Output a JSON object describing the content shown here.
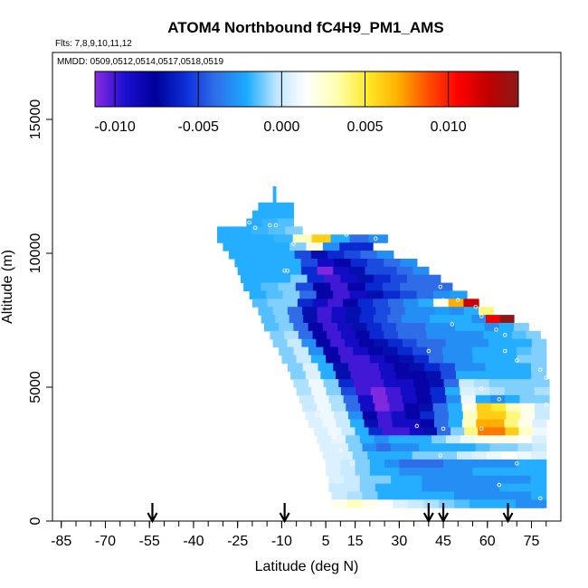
{
  "chart_data": {
    "type": "heatmap",
    "title": "ATOM4 Northbound fC4H9_PM1_AMS",
    "flights_text": "Flts: 7,8,9,10,11,12",
    "dates_text": "MMDD: 0509,0512,0514,0517,0518,0519",
    "xlabel": "Latitude (deg N)",
    "ylabel": "Altitude (m)",
    "xlim": [
      -88,
      85
    ],
    "ylim": [
      0,
      17500
    ],
    "x_ticks": [
      -85,
      -70,
      -55,
      -40,
      -25,
      -10,
      5,
      15,
      30,
      45,
      60,
      75
    ],
    "x_tick_labels": [
      "-85",
      "-70",
      "-55",
      "-40",
      "-25",
      "-10",
      "5",
      "15",
      "30",
      "45",
      "60",
      "75"
    ],
    "y_ticks": [
      0,
      5000,
      10000,
      15000
    ],
    "y_tick_labels": [
      "0",
      "5000",
      "10000",
      "15000"
    ],
    "colorbar": {
      "min": -0.0112,
      "max": 0.0142,
      "ticks": [
        -0.01,
        -0.005,
        0.0,
        0.005,
        0.01
      ],
      "tick_labels": [
        "-0.010",
        "-0.005",
        "0.000",
        "0.005",
        "0.010"
      ],
      "colors": [
        "#8a2be2",
        "#1a0fd0",
        "#00009a",
        "#0d2fd8",
        "#2f6fe8",
        "#19aaff",
        "#bfe6ff",
        "#ffffff",
        "#ffffb0",
        "#ffea2a",
        "#ffb000",
        "#ff5000",
        "#ff0000",
        "#c00000",
        "#8b1a1a"
      ]
    },
    "arrow_latitudes": [
      -54,
      -9,
      40,
      45,
      67
    ],
    "rows": [
      {
        "alt": 12350,
        "x0": -13,
        "x1": -12,
        "v": [
          -0.002
        ]
      },
      {
        "alt": 12050,
        "x0": -13,
        "x1": -12,
        "v": [
          -0.002
        ]
      },
      {
        "alt": 11750,
        "x0": -18,
        "x1": -6,
        "v": [
          -0.002,
          -0.002
        ]
      },
      {
        "alt": 11450,
        "x0": -20,
        "x1": -6,
        "v": [
          -0.002,
          -0.002,
          -0.002
        ]
      },
      {
        "alt": 11150,
        "x0": -22,
        "x1": -6,
        "v": [
          -0.002,
          -0.0018,
          -0.0015
        ]
      },
      {
        "alt": 10850,
        "x0": -32,
        "x1": -3,
        "v": [
          -0.002,
          -0.002,
          -0.0018,
          -0.0015,
          -0.001
        ]
      },
      {
        "alt": 10550,
        "x0": -32,
        "x1": 26,
        "v": [
          -0.002,
          -0.002,
          -0.002,
          -0.0018,
          0.003,
          0.006,
          -0.002,
          -0.004,
          -0.003
        ]
      },
      {
        "alt": 10250,
        "x0": -30,
        "x1": 21,
        "v": [
          -0.002,
          -0.002,
          -0.002,
          -0.002,
          -0.001,
          0.002,
          -0.003,
          -0.006,
          -0.006
        ]
      },
      {
        "alt": 9950,
        "x0": -28,
        "x1": 28,
        "v": [
          -0.002,
          -0.002,
          -0.002,
          -0.002,
          -0.005,
          -0.007,
          -0.006,
          -0.005,
          -0.004,
          -0.003
        ]
      },
      {
        "alt": 9650,
        "x0": -26,
        "x1": 36,
        "v": [
          -0.002,
          -0.002,
          -0.002,
          -0.002,
          -0.005,
          -0.009,
          -0.008,
          -0.006,
          -0.005,
          -0.004,
          -0.003
        ]
      },
      {
        "alt": 9350,
        "x0": -25,
        "x1": 40,
        "v": [
          -0.002,
          -0.002,
          -0.002,
          -0.002,
          -0.006,
          -0.011,
          -0.009,
          -0.007,
          -0.005,
          -0.005,
          -0.004,
          -0.003
        ]
      },
      {
        "alt": 9050,
        "x0": -24,
        "x1": 44,
        "v": [
          -0.002,
          -0.002,
          -0.002,
          -0.001,
          -0.006,
          -0.01,
          -0.009,
          -0.007,
          -0.006,
          -0.005,
          -0.004,
          -0.004
        ]
      },
      {
        "alt": 8750,
        "x0": -23,
        "x1": 48,
        "v": [
          -0.002,
          -0.0015,
          -0.001,
          -0.005,
          -0.008,
          -0.01,
          -0.008,
          -0.006,
          -0.005,
          -0.004,
          -0.004,
          -0.004
        ]
      },
      {
        "alt": 8450,
        "x0": -21,
        "x1": 53,
        "v": [
          -0.002,
          -0.0015,
          -0.001,
          -0.004,
          -0.008,
          -0.01,
          -0.009,
          -0.007,
          -0.006,
          -0.005,
          -0.004,
          -0.003,
          -0.0025
        ]
      },
      {
        "alt": 8150,
        "x0": -20,
        "x1": 57,
        "v": [
          -0.0015,
          -0.001,
          -0.001,
          -0.006,
          -0.009,
          -0.01,
          -0.008,
          -0.006,
          -0.005,
          -0.004,
          -0.003,
          -0.002,
          0.002,
          0.007,
          0.012
        ]
      },
      {
        "alt": 7850,
        "x0": -18,
        "x1": 62,
        "v": [
          -0.0015,
          -0.001,
          -0.004,
          -0.007,
          -0.01,
          -0.009,
          -0.007,
          -0.006,
          -0.005,
          -0.004,
          -0.003,
          -0.003,
          -0.0025,
          -0.003,
          -0.002,
          0.004
        ]
      },
      {
        "alt": 7550,
        "x0": -17,
        "x1": 69,
        "v": [
          -0.0015,
          -0.001,
          -0.004,
          -0.007,
          -0.01,
          -0.009,
          -0.007,
          -0.006,
          -0.005,
          -0.004,
          -0.003,
          -0.003,
          -0.002,
          -0.002,
          -0.002,
          -0.003,
          0.011,
          0.014
        ]
      },
      {
        "alt": 7250,
        "x0": -16,
        "x1": 74,
        "v": [
          -0.0015,
          -0.001,
          -0.004,
          -0.008,
          -0.01,
          -0.009,
          -0.007,
          -0.006,
          -0.005,
          -0.004,
          -0.004,
          -0.003,
          -0.003,
          -0.002,
          -0.002,
          -0.003,
          -0.002,
          -0.001
        ]
      },
      {
        "alt": 6950,
        "x0": -14,
        "x1": 78,
        "v": [
          -0.001,
          -0.0005,
          -0.004,
          -0.008,
          -0.01,
          -0.009,
          -0.008,
          -0.006,
          -0.005,
          -0.004,
          -0.004,
          -0.003,
          -0.003,
          -0.003,
          -0.003,
          -0.002,
          -0.002,
          -0.0015,
          -0.001
        ]
      },
      {
        "alt": 6650,
        "x0": -13,
        "x1": 80,
        "v": [
          -0.001,
          0.0,
          -0.003,
          -0.008,
          -0.01,
          -0.009,
          -0.008,
          -0.007,
          -0.006,
          -0.005,
          -0.004,
          -0.004,
          -0.003,
          -0.003,
          -0.003,
          -0.002,
          -0.002,
          -0.002,
          -0.001
        ]
      },
      {
        "alt": 6350,
        "x0": -11,
        "x1": 80,
        "v": [
          -0.001,
          0.0,
          -0.003,
          -0.008,
          -0.01,
          -0.009,
          -0.008,
          -0.007,
          -0.006,
          -0.005,
          -0.004,
          -0.003,
          -0.003,
          -0.002,
          -0.002,
          -0.002,
          -0.0015,
          -0.001
        ]
      },
      {
        "alt": 6050,
        "x0": -10,
        "x1": 80,
        "v": [
          -0.001,
          0.0,
          -0.002,
          -0.008,
          -0.01,
          -0.01,
          -0.009,
          -0.008,
          -0.007,
          -0.006,
          -0.004,
          -0.003,
          -0.003,
          -0.002,
          -0.002,
          -0.002,
          -0.001,
          -0.001
        ]
      },
      {
        "alt": 5750,
        "x0": -8,
        "x1": 80,
        "v": [
          -0.001,
          0.0005,
          -0.002,
          -0.007,
          -0.01,
          -0.01,
          -0.009,
          -0.008,
          -0.007,
          -0.006,
          -0.005,
          -0.003,
          -0.003,
          -0.002,
          -0.002,
          -0.002,
          -0.001
        ]
      },
      {
        "alt": 5450,
        "x0": -7,
        "x1": 80,
        "v": [
          -0.001,
          0.0005,
          -0.002,
          -0.007,
          -0.01,
          -0.01,
          -0.009,
          -0.008,
          -0.008,
          -0.007,
          -0.005,
          -0.002,
          -0.002,
          -0.002,
          -0.002,
          -0.002,
          -0.001
        ]
      },
      {
        "alt": 5150,
        "x0": -6,
        "x1": 81,
        "v": [
          -0.0005,
          0.001,
          -0.001,
          -0.006,
          -0.01,
          -0.01,
          -0.009,
          -0.009,
          -0.008,
          -0.007,
          -0.004,
          0.0,
          -0.0005,
          -0.001,
          -0.001,
          -0.001,
          -0.001
        ]
      },
      {
        "alt": 4850,
        "x0": -5,
        "x1": 81,
        "v": [
          -0.0005,
          0.001,
          -0.001,
          -0.005,
          -0.01,
          -0.011,
          -0.01,
          -0.009,
          -0.008,
          -0.006,
          -0.002,
          0.0005,
          0.0,
          -0.0005,
          -0.001,
          -0.001,
          -0.0005
        ]
      },
      {
        "alt": 4550,
        "x0": -4,
        "x1": 81,
        "v": [
          0.0,
          0.001,
          -0.0005,
          -0.004,
          -0.009,
          -0.011,
          -0.01,
          -0.009,
          -0.008,
          -0.006,
          -0.003,
          0.001,
          -0.002,
          -0.003,
          -0.002,
          -0.001,
          -0.001
        ]
      },
      {
        "alt": 4250,
        "x0": -3,
        "x1": 81,
        "v": [
          0.0,
          0.001,
          -0.0005,
          -0.004,
          -0.009,
          -0.011,
          -0.01,
          -0.008,
          -0.007,
          -0.004,
          -0.002,
          0.002,
          0.006,
          0.005,
          0.003,
          0.002,
          0.0
        ]
      },
      {
        "alt": 3950,
        "x0": -2,
        "x1": 81,
        "v": [
          0.0005,
          0.001,
          0.0,
          -0.003,
          -0.008,
          -0.01,
          -0.009,
          -0.008,
          -0.006,
          -0.004,
          -0.002,
          0.003,
          0.006,
          0.006,
          0.004,
          0.002,
          0.0
        ]
      },
      {
        "alt": 3650,
        "x0": -1,
        "x1": 80,
        "v": [
          0.0005,
          0.001,
          0.0,
          -0.002,
          -0.007,
          -0.01,
          -0.009,
          -0.009,
          -0.008,
          -0.004,
          -0.002,
          0.003,
          0.007,
          0.007,
          0.004,
          0.002,
          0.0005
        ]
      },
      {
        "alt": 3350,
        "x0": 1,
        "x1": 80,
        "v": [
          0.0005,
          0.001,
          0.0,
          -0.002,
          -0.006,
          -0.01,
          -0.01,
          -0.009,
          -0.007,
          -0.004,
          -0.001,
          0.004,
          0.008,
          0.008,
          0.006,
          0.003,
          0.001
        ]
      },
      {
        "alt": 3050,
        "x0": 2,
        "x1": 80,
        "v": [
          0.0005,
          0.0008,
          -0.001,
          -0.002,
          -0.003,
          -0.002,
          -0.002,
          -0.002,
          -0.001,
          0.0,
          0.001,
          0.002,
          0.002,
          0.002,
          0.0015,
          0.0005
        ]
      },
      {
        "alt": 2750,
        "x0": 3,
        "x1": 80,
        "v": [
          0.0005,
          0.0005,
          -0.001,
          -0.003,
          -0.004,
          -0.003,
          -0.003,
          -0.002,
          -0.002,
          -0.002,
          -0.002,
          -0.0015,
          -0.001,
          -0.001,
          -0.0005,
          0.0
        ]
      },
      {
        "alt": 2450,
        "x0": 4,
        "x1": 80,
        "v": [
          0.0005,
          0.0005,
          -0.001,
          -0.002,
          -0.002,
          -0.002,
          -0.001,
          -0.001,
          -0.001,
          0.0,
          0.0005,
          0.001,
          0.0015,
          0.001,
          0.0005
        ]
      },
      {
        "alt": 2150,
        "x0": 5,
        "x1": 80,
        "v": [
          0.0005,
          0.0,
          -0.001,
          -0.002,
          -0.003,
          -0.004,
          -0.004,
          -0.004,
          -0.003,
          -0.003,
          -0.003,
          -0.003,
          -0.003,
          -0.002,
          -0.002
        ]
      },
      {
        "alt": 1850,
        "x0": 5,
        "x1": 80,
        "v": [
          0.0005,
          0.0,
          -0.001,
          -0.002,
          -0.002,
          -0.003,
          -0.003,
          -0.003,
          -0.003,
          -0.003,
          -0.002,
          -0.002,
          -0.002,
          -0.002,
          -0.002
        ]
      },
      {
        "alt": 1550,
        "x0": 6,
        "x1": 80,
        "v": [
          0.0005,
          0.0,
          -0.001,
          -0.001,
          -0.002,
          -0.002,
          -0.003,
          -0.003,
          -0.003,
          -0.003,
          -0.003,
          -0.003,
          -0.003,
          -0.002
        ]
      },
      {
        "alt": 1250,
        "x0": 6,
        "x1": 80,
        "v": [
          0.0,
          0.0,
          -0.001,
          -0.002,
          -0.002,
          -0.002,
          -0.003,
          -0.003,
          -0.003,
          -0.003,
          -0.003,
          -0.002,
          -0.002,
          -0.002
        ]
      },
      {
        "alt": 950,
        "x0": 7,
        "x1": 80,
        "v": [
          0.0,
          -0.0005,
          -0.001,
          -0.002,
          -0.002,
          -0.002,
          -0.002,
          -0.002,
          -0.003,
          -0.003,
          -0.003,
          -0.003,
          -0.003,
          -0.002
        ]
      },
      {
        "alt": 650,
        "x0": 7,
        "x1": 80,
        "v": [
          0.002,
          0.003,
          0.002,
          0.0015,
          0.0005,
          0.0,
          -0.0005,
          -0.001,
          -0.0015,
          -0.002,
          -0.002,
          -0.002,
          -0.003,
          -0.003
        ]
      }
    ],
    "points": [
      [
        -21,
        11150
      ],
      [
        -19,
        10950
      ],
      [
        -14,
        11050
      ],
      [
        -12,
        11050
      ],
      [
        12,
        10700
      ],
      [
        22,
        10550
      ],
      [
        -6,
        10350
      ],
      [
        -8,
        9350
      ],
      [
        -9,
        9350
      ],
      [
        41,
        9500
      ],
      [
        44,
        8750
      ],
      [
        45,
        8250
      ],
      [
        50,
        8250
      ],
      [
        56,
        8000
      ],
      [
        58,
        7650
      ],
      [
        63,
        7150
      ],
      [
        66,
        6950
      ],
      [
        66,
        6350
      ],
      [
        48,
        7350
      ],
      [
        40,
        6350
      ],
      [
        70,
        6000
      ],
      [
        78,
        5650
      ],
      [
        80,
        5350
      ],
      [
        58,
        4950
      ],
      [
        64,
        4550
      ],
      [
        80,
        4350
      ],
      [
        2,
        3950
      ],
      [
        36,
        3550
      ],
      [
        45,
        3450
      ],
      [
        58,
        3450
      ],
      [
        73,
        3250
      ],
      [
        8,
        3150
      ],
      [
        10,
        2650
      ],
      [
        44,
        2450
      ],
      [
        14,
        2150
      ],
      [
        70,
        2150
      ],
      [
        64,
        1350
      ],
      [
        78,
        850
      ]
    ]
  }
}
